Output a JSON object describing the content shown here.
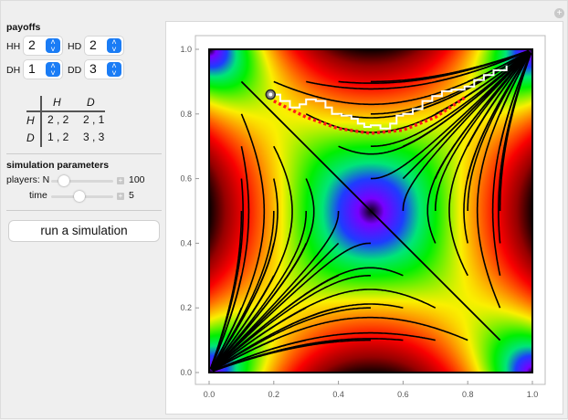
{
  "payoffs": {
    "title": "payoffs",
    "HH": {
      "label": "HH",
      "value": "2"
    },
    "HD": {
      "label": "HD",
      "value": "2"
    },
    "DH": {
      "label": "DH",
      "value": "1"
    },
    "DD": {
      "label": "DD",
      "value": "3"
    }
  },
  "payoff_table": {
    "col_headers": [
      "H",
      "D"
    ],
    "rows": [
      {
        "header": "H",
        "cells": [
          "2 , 2",
          "2 , 1"
        ]
      },
      {
        "header": "D",
        "cells": [
          "1 , 2",
          "3 , 3"
        ]
      }
    ]
  },
  "simulation": {
    "title": "simulation parameters",
    "players": {
      "label": "players: N",
      "value": "100",
      "fraction": 0.15
    },
    "time": {
      "label": "time",
      "value": "5",
      "fraction": 0.45
    },
    "run_label": "run a simulation"
  },
  "plot": {
    "x_ticks": [
      "0.0",
      "0.2",
      "0.4",
      "0.6",
      "0.8",
      "1.0"
    ],
    "y_ticks": [
      "0.0",
      "0.2",
      "0.4",
      "0.6",
      "0.8",
      "1.0"
    ],
    "colors": {
      "trajectory": "#ffffff",
      "mean_path": "#ff1a1a",
      "streamlines": "#000000"
    },
    "start_point": [
      0.19,
      0.86
    ],
    "separatrix": [
      [
        0.1,
        0.9
      ],
      [
        0.9,
        0.1
      ]
    ],
    "mean_path": [
      [
        0.2,
        0.84
      ],
      [
        0.3,
        0.79
      ],
      [
        0.4,
        0.755
      ],
      [
        0.5,
        0.74
      ],
      [
        0.6,
        0.75
      ],
      [
        0.7,
        0.79
      ],
      [
        0.79,
        0.85
      ]
    ],
    "trajectory": [
      [
        0.19,
        0.86
      ],
      [
        0.22,
        0.84
      ],
      [
        0.25,
        0.82
      ],
      [
        0.28,
        0.83
      ],
      [
        0.3,
        0.845
      ],
      [
        0.33,
        0.84
      ],
      [
        0.36,
        0.82
      ],
      [
        0.38,
        0.8
      ],
      [
        0.41,
        0.795
      ],
      [
        0.44,
        0.785
      ],
      [
        0.46,
        0.77
      ],
      [
        0.48,
        0.76
      ],
      [
        0.5,
        0.765
      ],
      [
        0.53,
        0.755
      ],
      [
        0.56,
        0.77
      ],
      [
        0.58,
        0.795
      ],
      [
        0.6,
        0.8
      ],
      [
        0.63,
        0.815
      ],
      [
        0.66,
        0.84
      ],
      [
        0.69,
        0.855
      ],
      [
        0.72,
        0.87
      ],
      [
        0.75,
        0.875
      ],
      [
        0.79,
        0.885
      ],
      [
        0.82,
        0.905
      ],
      [
        0.85,
        0.92
      ],
      [
        0.88,
        0.935
      ],
      [
        0.92,
        0.95
      ]
    ]
  }
}
